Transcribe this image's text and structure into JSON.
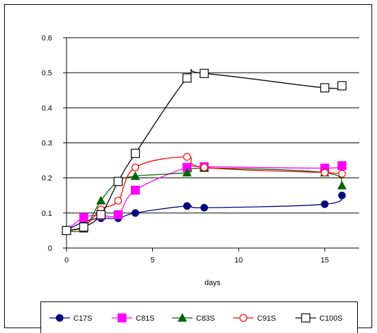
{
  "chart_data": {
    "type": "line",
    "title": "",
    "xlabel": "days",
    "ylabel": "",
    "xlim": [
      0,
      17
    ],
    "ylim": [
      0,
      0.6
    ],
    "x_ticks": [
      0,
      5,
      10,
      15
    ],
    "y_ticks": [
      0,
      0.1,
      0.2,
      0.3,
      0.4,
      0.5,
      0.6
    ],
    "x_tick_labels": [
      "0",
      "5",
      "10",
      "15"
    ],
    "y_tick_labels": [
      "0",
      "0.1",
      "0.2",
      "0.3",
      "0.4",
      "0.5",
      "0.6"
    ],
    "grid": "horizontal",
    "legend_position": "bottom",
    "x": [
      0,
      1,
      2,
      3,
      4,
      7,
      8,
      15,
      16
    ],
    "series": [
      {
        "name": "C17S",
        "color": "#000080",
        "marker": "filled-circle",
        "values": [
          0.05,
          0.075,
          0.085,
          0.085,
          0.1,
          0.12,
          0.115,
          0.125,
          0.15
        ]
      },
      {
        "name": "C81S",
        "color": "#FF00FF",
        "marker": "filled-square",
        "values": [
          0.05,
          0.087,
          0.093,
          0.095,
          0.165,
          0.23,
          0.232,
          0.228,
          0.235
        ]
      },
      {
        "name": "C83S",
        "color": "#006400",
        "marker": "filled-triangle",
        "values": [
          0.05,
          0.055,
          0.135,
          0.19,
          0.205,
          0.215,
          0.228,
          0.215,
          0.178
        ]
      },
      {
        "name": "C91S",
        "color": "#FF0000",
        "marker": "open-circle",
        "values": [
          0.05,
          0.06,
          0.11,
          0.135,
          0.23,
          0.26,
          0.23,
          0.215,
          0.212
        ]
      },
      {
        "name": "C100S",
        "color": "#000000",
        "marker": "open-square",
        "values": [
          0.05,
          0.06,
          0.095,
          0.19,
          0.27,
          0.485,
          0.498,
          0.457,
          0.463
        ]
      }
    ]
  }
}
